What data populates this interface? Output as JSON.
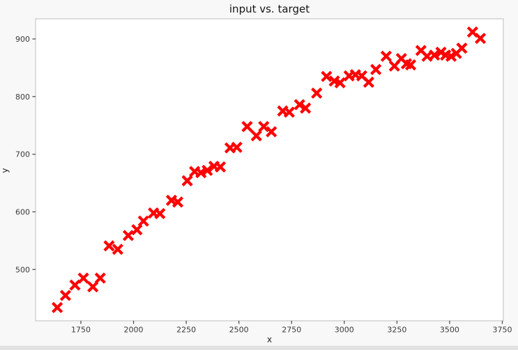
{
  "figure": {
    "title": "input vs. target",
    "xlabel": "x",
    "ylabel": "y"
  },
  "colors": {
    "marker": "#ff0000",
    "panel_background": "#ffffff",
    "figure_background": "#f8f8f8",
    "spine": "#d2d2d2",
    "tick": "#444444",
    "tick_label": "#3a3a3a",
    "title_text": "#151515"
  },
  "chart_data": {
    "type": "scatter",
    "title": "input vs. target",
    "xlabel": "x",
    "ylabel": "y",
    "xlim": [
      1535,
      3755
    ],
    "ylim": [
      411,
      935
    ],
    "xticks": [
      1750,
      2000,
      2250,
      2500,
      2750,
      3000,
      3250,
      3500,
      3750
    ],
    "yticks": [
      500,
      600,
      700,
      800,
      900
    ],
    "grid": false,
    "legend": false,
    "series": [
      {
        "name": "input vs. target points",
        "marker": "x",
        "color": "#ff0000",
        "points": [
          [
            1638,
            434
          ],
          [
            1677,
            455
          ],
          [
            1722,
            473
          ],
          [
            1762,
            485
          ],
          [
            1807,
            470
          ],
          [
            1842,
            485
          ],
          [
            1884,
            541
          ],
          [
            1925,
            535
          ],
          [
            1975,
            559
          ],
          [
            2016,
            569
          ],
          [
            2047,
            584
          ],
          [
            2095,
            598
          ],
          [
            2125,
            597
          ],
          [
            2180,
            620
          ],
          [
            2210,
            617
          ],
          [
            2255,
            654
          ],
          [
            2290,
            670
          ],
          [
            2320,
            668
          ],
          [
            2350,
            672
          ],
          [
            2382,
            679
          ],
          [
            2412,
            678
          ],
          [
            2458,
            711
          ],
          [
            2490,
            712
          ],
          [
            2539,
            748
          ],
          [
            2583,
            732
          ],
          [
            2618,
            748
          ],
          [
            2654,
            739
          ],
          [
            2708,
            775
          ],
          [
            2739,
            773
          ],
          [
            2788,
            786
          ],
          [
            2816,
            780
          ],
          [
            2869,
            806
          ],
          [
            2916,
            835
          ],
          [
            2953,
            827
          ],
          [
            2980,
            824
          ],
          [
            3023,
            836
          ],
          [
            3053,
            838
          ],
          [
            3083,
            836
          ],
          [
            3116,
            825
          ],
          [
            3150,
            847
          ],
          [
            3199,
            870
          ],
          [
            3238,
            853
          ],
          [
            3271,
            866
          ],
          [
            3295,
            857
          ],
          [
            3315,
            855
          ],
          [
            3364,
            880
          ],
          [
            3393,
            870
          ],
          [
            3428,
            872
          ],
          [
            3459,
            877
          ],
          [
            3481,
            872
          ],
          [
            3507,
            870
          ],
          [
            3532,
            875
          ],
          [
            3558,
            884
          ],
          [
            3609,
            912
          ],
          [
            3646,
            901
          ]
        ]
      }
    ]
  }
}
